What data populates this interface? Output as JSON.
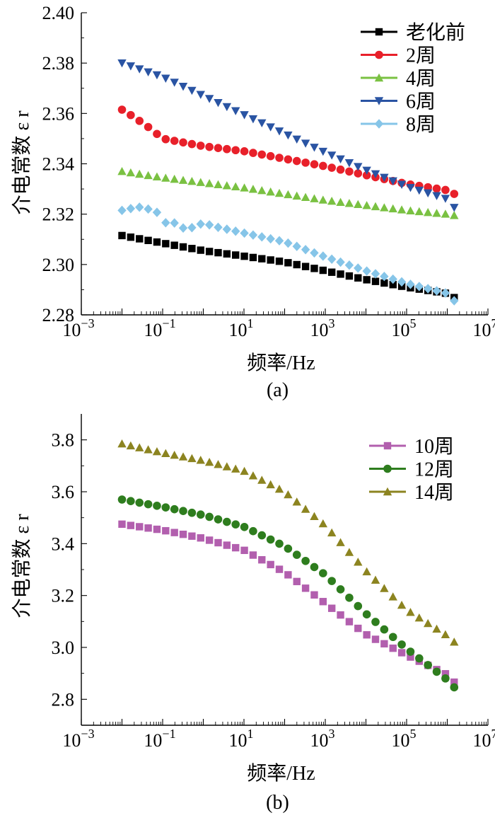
{
  "chart_data": [
    {
      "type": "scatter",
      "panel_label": "(a)",
      "xlabel": "频率/Hz",
      "ylabel": "介电常数 ε r",
      "xscale": "log",
      "xlim_exp": [
        -3,
        7
      ],
      "x_tick_labels": [
        {
          "base": "10",
          "exp": "−3"
        },
        {
          "base": "10",
          "exp": "−1"
        },
        {
          "base": "10",
          "exp": "1"
        },
        {
          "base": "10",
          "exp": "3"
        },
        {
          "base": "10",
          "exp": "5"
        },
        {
          "base": "10",
          "exp": "7"
        }
      ],
      "ylim": [
        2.28,
        2.4
      ],
      "y_ticks": [
        "2.28",
        "2.30",
        "2.32",
        "2.34",
        "2.36",
        "2.38",
        "2.40"
      ],
      "legend_position": "top-right",
      "series": [
        {
          "name": "老化前",
          "marker": "square",
          "color": "#000000",
          "points": [
            [
              0.01,
              2.3115
            ],
            [
              0.1,
              2.3085
            ],
            [
              1,
              2.3055
            ],
            [
              10,
              2.3033
            ],
            [
              100,
              2.301
            ],
            [
              1000,
              2.2975
            ],
            [
              10000,
              2.294
            ],
            [
              100000,
              2.291
            ],
            [
              1000000,
              2.2885
            ],
            [
              1500000,
              2.2868
            ]
          ]
        },
        {
          "name": "2周",
          "marker": "circle",
          "color": "#e8202a",
          "points": [
            [
              0.01,
              2.3615
            ],
            [
              0.02,
              2.3585
            ],
            [
              0.05,
              2.354
            ],
            [
              0.1,
              2.35
            ],
            [
              1,
              2.347
            ],
            [
              10,
              2.345
            ],
            [
              100,
              2.342
            ],
            [
              1000,
              2.339
            ],
            [
              10000,
              2.3355
            ],
            [
              100000,
              2.332
            ],
            [
              1000000,
              2.3295
            ],
            [
              1500000,
              2.328
            ]
          ]
        },
        {
          "name": "4周",
          "marker": "triangle-up",
          "color": "#7ac142",
          "points": [
            [
              0.01,
              2.337
            ],
            [
              0.1,
              2.3345
            ],
            [
              1,
              2.3325
            ],
            [
              10,
              2.3305
            ],
            [
              100,
              2.328
            ],
            [
              1000,
              2.3255
            ],
            [
              10000,
              2.3235
            ],
            [
              100000,
              2.3215
            ],
            [
              1000000,
              2.32
            ],
            [
              1500000,
              2.3195
            ]
          ]
        },
        {
          "name": "6周",
          "marker": "triangle-down",
          "color": "#2a54a3",
          "points": [
            [
              0.01,
              2.38
            ],
            [
              0.1,
              2.3745
            ],
            [
              1,
              2.367
            ],
            [
              10,
              2.3595
            ],
            [
              100,
              2.352
            ],
            [
              1000,
              2.3445
            ],
            [
              10000,
              2.3375
            ],
            [
              100000,
              2.331
            ],
            [
              1000000,
              2.326
            ],
            [
              1500000,
              2.3225
            ]
          ]
        },
        {
          "name": "8周",
          "marker": "diamond",
          "color": "#86c5e8",
          "points": [
            [
              0.01,
              2.3215
            ],
            [
              0.02,
              2.3225
            ],
            [
              0.035,
              2.323
            ],
            [
              0.05,
              2.3215
            ],
            [
              0.08,
              2.3205
            ],
            [
              0.12,
              2.3165
            ],
            [
              0.2,
              2.3165
            ],
            [
              0.3,
              2.3145
            ],
            [
              0.5,
              2.3145
            ],
            [
              1,
              2.3165
            ],
            [
              2,
              2.315
            ],
            [
              10,
              2.3125
            ],
            [
              100,
              2.309
            ],
            [
              1000,
              2.303
            ],
            [
              10000,
              2.2975
            ],
            [
              100000,
              2.2925
            ],
            [
              1000000,
              2.2885
            ],
            [
              1500000,
              2.2855
            ]
          ]
        }
      ]
    },
    {
      "type": "scatter",
      "panel_label": "(b)",
      "xlabel": "频率/Hz",
      "ylabel": "介电常数 ε r",
      "xscale": "log",
      "xlim_exp": [
        -3,
        7
      ],
      "x_tick_labels": [
        {
          "base": "10",
          "exp": "−3"
        },
        {
          "base": "10",
          "exp": "−1"
        },
        {
          "base": "10",
          "exp": "1"
        },
        {
          "base": "10",
          "exp": "3"
        },
        {
          "base": "10",
          "exp": "5"
        },
        {
          "base": "10",
          "exp": "7"
        }
      ],
      "ylim": [
        2.7,
        3.9
      ],
      "y_ticks": [
        "2.8",
        "3.0",
        "3.2",
        "3.4",
        "3.6",
        "3.8"
      ],
      "legend_position": "top-right",
      "series": [
        {
          "name": "10周",
          "marker": "square",
          "color": "#b25fae",
          "points": [
            [
              0.01,
              3.475
            ],
            [
              0.1,
              3.452
            ],
            [
              1,
              3.42
            ],
            [
              10,
              3.375
            ],
            [
              100,
              3.29
            ],
            [
              1000,
              3.17
            ],
            [
              10000,
              3.05
            ],
            [
              100000,
              2.97
            ],
            [
              1000000,
              2.895
            ],
            [
              1500000,
              2.865
            ]
          ]
        },
        {
          "name": "12周",
          "marker": "circle",
          "color": "#2e7d1e",
          "points": [
            [
              0.01,
              3.57
            ],
            [
              0.1,
              3.542
            ],
            [
              1,
              3.51
            ],
            [
              10,
              3.465
            ],
            [
              100,
              3.39
            ],
            [
              1000,
              3.28
            ],
            [
              10000,
              3.13
            ],
            [
              100000,
              2.995
            ],
            [
              1000000,
              2.875
            ],
            [
              1500000,
              2.845
            ]
          ]
        },
        {
          "name": "14周",
          "marker": "triangle-up",
          "color": "#8c8420",
          "points": [
            [
              0.01,
              3.785
            ],
            [
              0.1,
              3.75
            ],
            [
              1,
              3.72
            ],
            [
              10,
              3.68
            ],
            [
              100,
              3.6
            ],
            [
              1000,
              3.47
            ],
            [
              10000,
              3.295
            ],
            [
              100000,
              3.145
            ],
            [
              1000000,
              3.045
            ],
            [
              1500000,
              3.02
            ]
          ]
        }
      ]
    }
  ]
}
